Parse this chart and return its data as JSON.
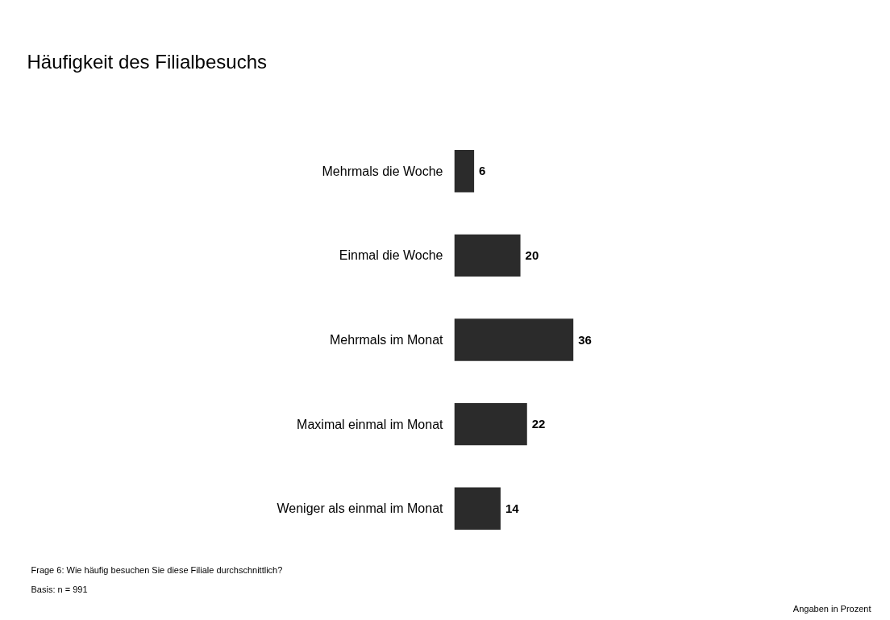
{
  "chart_data": {
    "type": "bar",
    "orientation": "horizontal",
    "title": "Häufigkeit des Filialbesuchs",
    "categories": [
      "Mehrmals die Woche",
      "Einmal die Woche",
      "Mehrmals im Monat",
      "Maximal einmal im Monat",
      "Weniger als einmal im Monat"
    ],
    "values": [
      6,
      20,
      36,
      22,
      14
    ],
    "color": "#2b2b2b",
    "data_labels": true,
    "grid": false,
    "annotations": [
      "Frage 6: Wie häufig besuchen Sie diese Filiale durchschnittlich?",
      "Basis: n = 991",
      "Angaben in Prozent"
    ]
  }
}
